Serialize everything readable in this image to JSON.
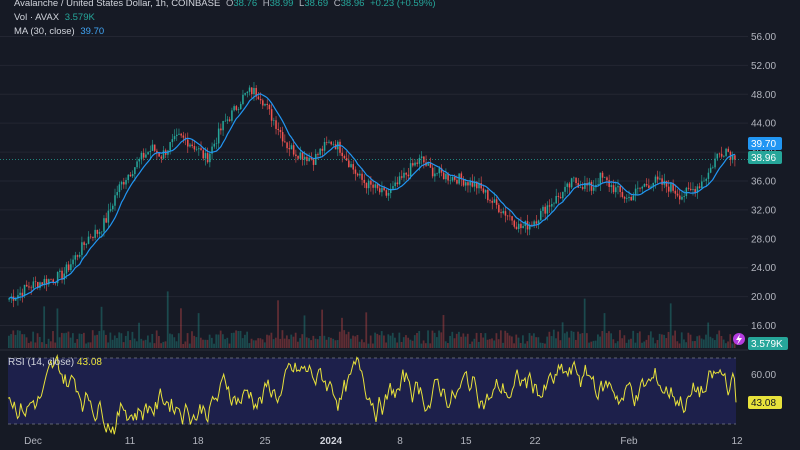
{
  "legend": {
    "symbol_line": "Avalanche / United States Dollar, 1h, COINBASE",
    "open_label": "O",
    "open": "38.76",
    "high_label": "H",
    "high": "38.99",
    "low_label": "L",
    "low": "38.69",
    "close_label": "C",
    "close": "38.96",
    "change": "+0.23 (+0.59%)",
    "vol_label": "Vol · AVAX",
    "vol_value": "3.579K",
    "ma_label": "MA (30, close)",
    "ma_value": "39.70",
    "rsi_label": "RSI (14, close)",
    "rsi_value": "43.08"
  },
  "price_axis": [
    "56.00",
    "52.00",
    "48.00",
    "44.00",
    "40.00",
    "36.00",
    "32.00",
    "28.00",
    "24.00",
    "20.00",
    "16.00"
  ],
  "rsi_axis": [
    "60.00"
  ],
  "pills": {
    "ma": "39.70",
    "close": "38.96",
    "volume": "3.579K",
    "rsi": "43.08"
  },
  "date_axis": [
    "Dec",
    "11",
    "18",
    "25",
    "2024",
    "8",
    "15",
    "22",
    "Feb",
    "12"
  ],
  "colors": {
    "background": "#161a25",
    "up": "#26a69a",
    "down": "#ef5350",
    "ma": "#2196f3",
    "rsi": "#e8e23b",
    "rsi_band": "#1e2150"
  },
  "chart_data": {
    "type": "candlestick",
    "title": "Avalanche / United States Dollar, 1h, COINBASE",
    "price_range": [
      14,
      58
    ],
    "x_range": [
      "Dec",
      "12"
    ],
    "price_path": [
      [
        0,
        19.8
      ],
      [
        1,
        20.3
      ],
      [
        2,
        21.3
      ],
      [
        3,
        21.8
      ],
      [
        4,
        22.2
      ],
      [
        5,
        22.5
      ],
      [
        6,
        23.0
      ],
      [
        7,
        24.8
      ],
      [
        8,
        26.5
      ],
      [
        9,
        28.5
      ],
      [
        10,
        29.0
      ],
      [
        11,
        31.0
      ],
      [
        12,
        34.5
      ],
      [
        13,
        36.5
      ],
      [
        14,
        38.0
      ],
      [
        15,
        39.5
      ],
      [
        16,
        40.5
      ],
      [
        17,
        39.5
      ],
      [
        18,
        41.0
      ],
      [
        19,
        42.0
      ],
      [
        20,
        41.5
      ],
      [
        21,
        40.5
      ],
      [
        22,
        39.0
      ],
      [
        23,
        41.5
      ],
      [
        24,
        44.0
      ],
      [
        25,
        45.5
      ],
      [
        26,
        47.5
      ],
      [
        27,
        48.5
      ],
      [
        28,
        48.0
      ],
      [
        29,
        45.5
      ],
      [
        30,
        43.5
      ],
      [
        31,
        41.0
      ],
      [
        32,
        40.0
      ],
      [
        33,
        39.5
      ],
      [
        34,
        39.0
      ],
      [
        35,
        40.5
      ],
      [
        36,
        41.5
      ],
      [
        37,
        40.5
      ],
      [
        38,
        38.5
      ],
      [
        39,
        36.5
      ],
      [
        40,
        35.5
      ],
      [
        41,
        34.8
      ],
      [
        42,
        34.0
      ],
      [
        43,
        35.0
      ],
      [
        44,
        36.5
      ],
      [
        45,
        38.0
      ],
      [
        46,
        39.0
      ],
      [
        47,
        37.5
      ],
      [
        48,
        37.0
      ],
      [
        49,
        36.6
      ],
      [
        50,
        36.4
      ],
      [
        51,
        36.0
      ],
      [
        52,
        35.5
      ],
      [
        53,
        34.5
      ],
      [
        54,
        33.0
      ],
      [
        55,
        32.0
      ],
      [
        56,
        31.0
      ],
      [
        57,
        29.5
      ],
      [
        58,
        30.0
      ],
      [
        59,
        31.0
      ],
      [
        60,
        32.5
      ],
      [
        61,
        33.5
      ],
      [
        62,
        34.5
      ],
      [
        63,
        36.0
      ],
      [
        64,
        35.5
      ],
      [
        65,
        35.0
      ],
      [
        66,
        36.5
      ],
      [
        67,
        35.5
      ],
      [
        68,
        34.5
      ],
      [
        69,
        33.5
      ],
      [
        70,
        34.5
      ],
      [
        71,
        35.5
      ],
      [
        72,
        36.0
      ],
      [
        73,
        35.5
      ],
      [
        74,
        35.0
      ],
      [
        75,
        34.0
      ],
      [
        76,
        34.5
      ],
      [
        77,
        35.5
      ],
      [
        78,
        37.0
      ],
      [
        79,
        39.5
      ],
      [
        80,
        40.5
      ],
      [
        81,
        39.0
      ]
    ],
    "rsi_range": [
      0,
      100
    ],
    "rsi_levels": [
      30,
      70
    ],
    "last_rsi": 43.08
  }
}
